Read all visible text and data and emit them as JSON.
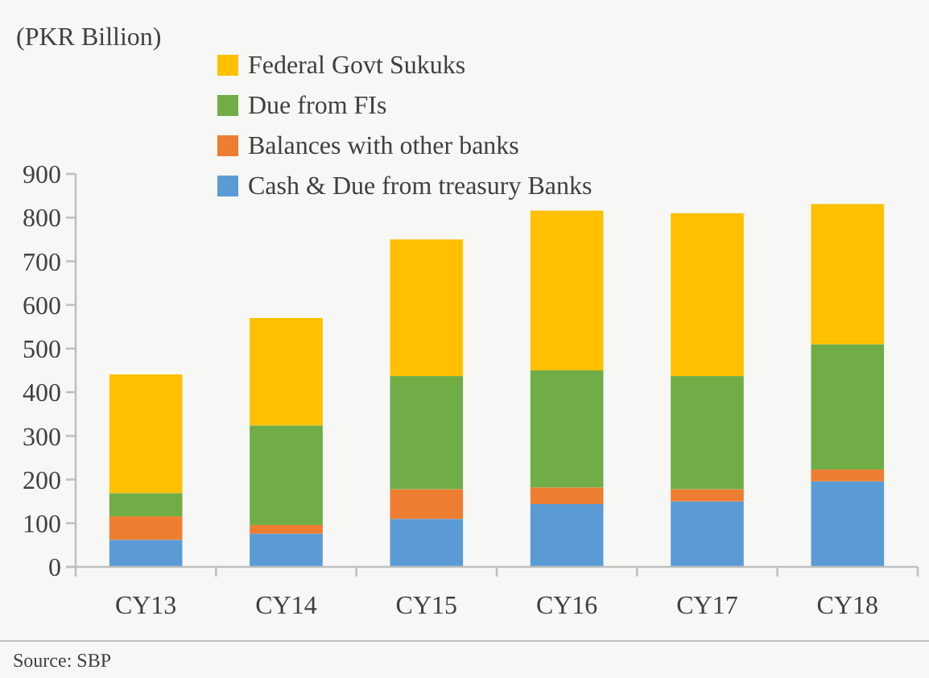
{
  "chart_data": {
    "type": "bar",
    "stacked": true,
    "ylabel": "(PKR Billion)",
    "categories": [
      "CY13",
      "CY14",
      "CY15",
      "CY16",
      "CY17",
      "CY18"
    ],
    "series": [
      {
        "name": "Cash & Due from treasury Banks",
        "color": "#5b9bd5",
        "values": [
          62,
          76,
          110,
          144,
          150,
          196
        ]
      },
      {
        "name": "Balances with other banks",
        "color": "#ed7d31",
        "values": [
          54,
          20,
          68,
          38,
          28,
          27
        ]
      },
      {
        "name": "Due from FIs",
        "color": "#70ad47",
        "values": [
          53,
          228,
          259,
          268,
          259,
          287
        ]
      },
      {
        "name": "Federal Govt Sukuks",
        "color": "#ffc000",
        "values": [
          272,
          246,
          313,
          366,
          373,
          321
        ]
      }
    ],
    "ylim": [
      0,
      900
    ],
    "yticks": [
      0,
      100,
      200,
      300,
      400,
      500,
      600,
      700,
      800,
      900
    ],
    "grid": false,
    "legend": "top left",
    "annotations": [
      "Source: SBP"
    ]
  }
}
